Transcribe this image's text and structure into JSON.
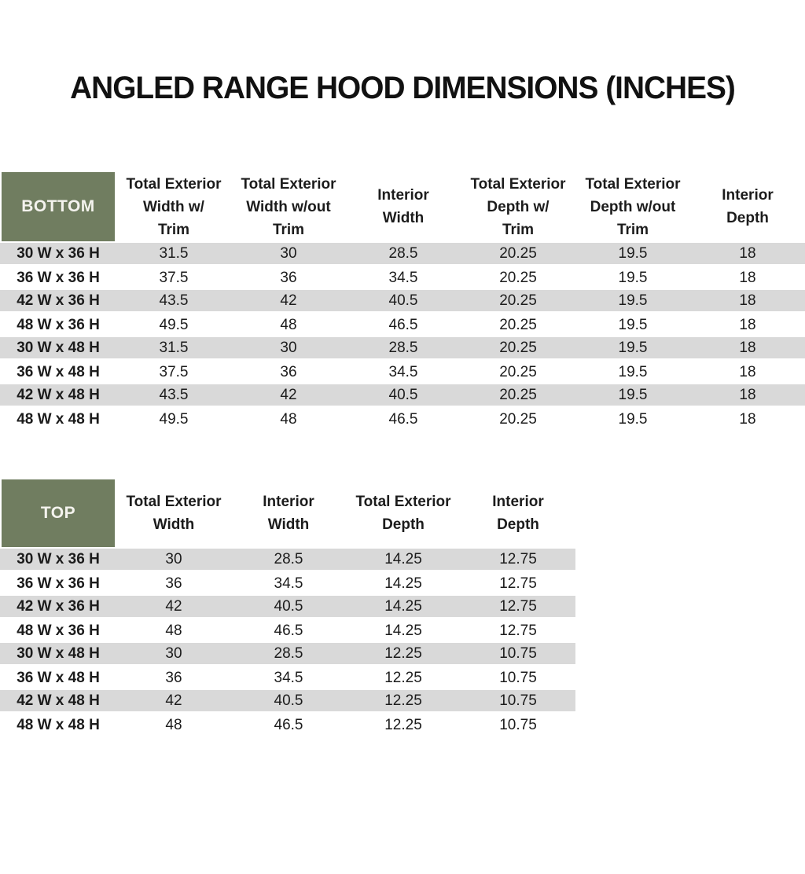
{
  "title": "ANGLED RANGE HOOD DIMENSIONS (INCHES)",
  "colors": {
    "header_green": "#707D60",
    "row_shade": "#D9D9D9",
    "header_text": "#F4F3EE"
  },
  "tables": [
    {
      "name": "BOTTOM",
      "columns": [
        "Total Exterior\nWidth w/\nTrim",
        "Total Exterior\nWidth w/out\nTrim",
        "Interior\nWidth",
        "Total Exterior\nDepth w/\nTrim",
        "Total Exterior\nDepth w/out\nTrim",
        "Interior\nDepth"
      ],
      "rows": [
        {
          "label": "30 W x 36 H",
          "values": [
            "31.5",
            "30",
            "28.5",
            "20.25",
            "19.5",
            "18"
          ]
        },
        {
          "label": "36 W x 36 H",
          "values": [
            "37.5",
            "36",
            "34.5",
            "20.25",
            "19.5",
            "18"
          ]
        },
        {
          "label": "42 W x 36 H",
          "values": [
            "43.5",
            "42",
            "40.5",
            "20.25",
            "19.5",
            "18"
          ]
        },
        {
          "label": "48 W x 36 H",
          "values": [
            "49.5",
            "48",
            "46.5",
            "20.25",
            "19.5",
            "18"
          ]
        },
        {
          "label": "30 W x 48 H",
          "values": [
            "31.5",
            "30",
            "28.5",
            "20.25",
            "19.5",
            "18"
          ]
        },
        {
          "label": "36 W x 48 H",
          "values": [
            "37.5",
            "36",
            "34.5",
            "20.25",
            "19.5",
            "18"
          ]
        },
        {
          "label": "42 W x 48 H",
          "values": [
            "43.5",
            "42",
            "40.5",
            "20.25",
            "19.5",
            "18"
          ]
        },
        {
          "label": "48 W x 48 H",
          "values": [
            "49.5",
            "48",
            "46.5",
            "20.25",
            "19.5",
            "18"
          ]
        }
      ]
    },
    {
      "name": "TOP",
      "columns": [
        "Total Exterior\nWidth",
        "Interior\nWidth",
        "Total Exterior\nDepth",
        "Interior\nDepth"
      ],
      "rows": [
        {
          "label": "30 W x 36 H",
          "values": [
            "30",
            "28.5",
            "14.25",
            "12.75"
          ]
        },
        {
          "label": "36 W x 36 H",
          "values": [
            "36",
            "34.5",
            "14.25",
            "12.75"
          ]
        },
        {
          "label": "42 W x 36 H",
          "values": [
            "42",
            "40.5",
            "14.25",
            "12.75"
          ]
        },
        {
          "label": "48 W x 36 H",
          "values": [
            "48",
            "46.5",
            "14.25",
            "12.75"
          ]
        },
        {
          "label": "30 W x 48 H",
          "values": [
            "30",
            "28.5",
            "12.25",
            "10.75"
          ]
        },
        {
          "label": "36 W x 48 H",
          "values": [
            "36",
            "34.5",
            "12.25",
            "10.75"
          ]
        },
        {
          "label": "42 W x 48 H",
          "values": [
            "42",
            "40.5",
            "12.25",
            "10.75"
          ]
        },
        {
          "label": "48 W x 48 H",
          "values": [
            "48",
            "46.5",
            "12.25",
            "10.75"
          ]
        }
      ]
    }
  ]
}
